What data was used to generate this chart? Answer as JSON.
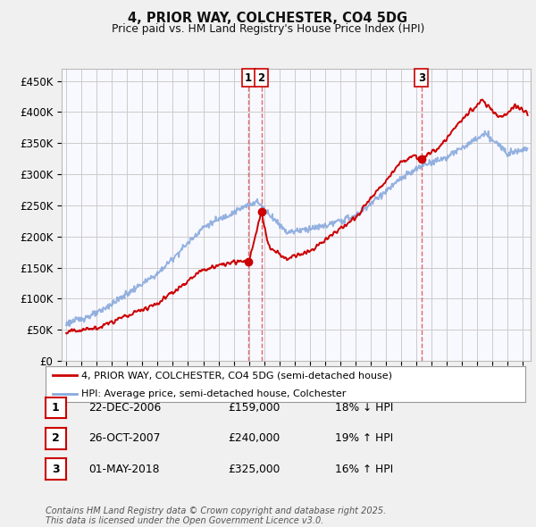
{
  "title": "4, PRIOR WAY, COLCHESTER, CO4 5DG",
  "subtitle": "Price paid vs. HM Land Registry's House Price Index (HPI)",
  "ytick_labels": [
    "£0",
    "£50K",
    "£100K",
    "£150K",
    "£200K",
    "£250K",
    "£300K",
    "£350K",
    "£400K",
    "£450K"
  ],
  "yticks": [
    0,
    50000,
    100000,
    150000,
    200000,
    250000,
    300000,
    350000,
    400000,
    450000
  ],
  "ylim": [
    0,
    470000
  ],
  "red_color": "#cc0000",
  "blue_color": "#88aadd",
  "vline_color_red": "#dd4444",
  "vline_color_blue": "#aabbdd",
  "background_color": "#f0f0f0",
  "plot_bg_color": "#f8f8ff",
  "grid_color": "#cccccc",
  "transactions": [
    {
      "num": 1,
      "date": "22-DEC-2006",
      "price": 159000,
      "price_str": "£159,000",
      "pct": "18%",
      "dir": "↓",
      "x_year": 2006.97
    },
    {
      "num": 2,
      "date": "26-OCT-2007",
      "price": 240000,
      "price_str": "£240,000",
      "pct": "19%",
      "dir": "↑",
      "x_year": 2007.82
    },
    {
      "num": 3,
      "date": "01-MAY-2018",
      "price": 325000,
      "price_str": "£325,000",
      "pct": "16%",
      "dir": "↑",
      "x_year": 2018.33
    }
  ],
  "legend_entries": [
    "4, PRIOR WAY, COLCHESTER, CO4 5DG (semi-detached house)",
    "HPI: Average price, semi-detached house, Colchester"
  ],
  "footnote": "Contains HM Land Registry data © Crown copyright and database right 2025.\nThis data is licensed under the Open Government Licence v3.0.",
  "xlim_start": 1994.7,
  "xlim_end": 2025.5
}
